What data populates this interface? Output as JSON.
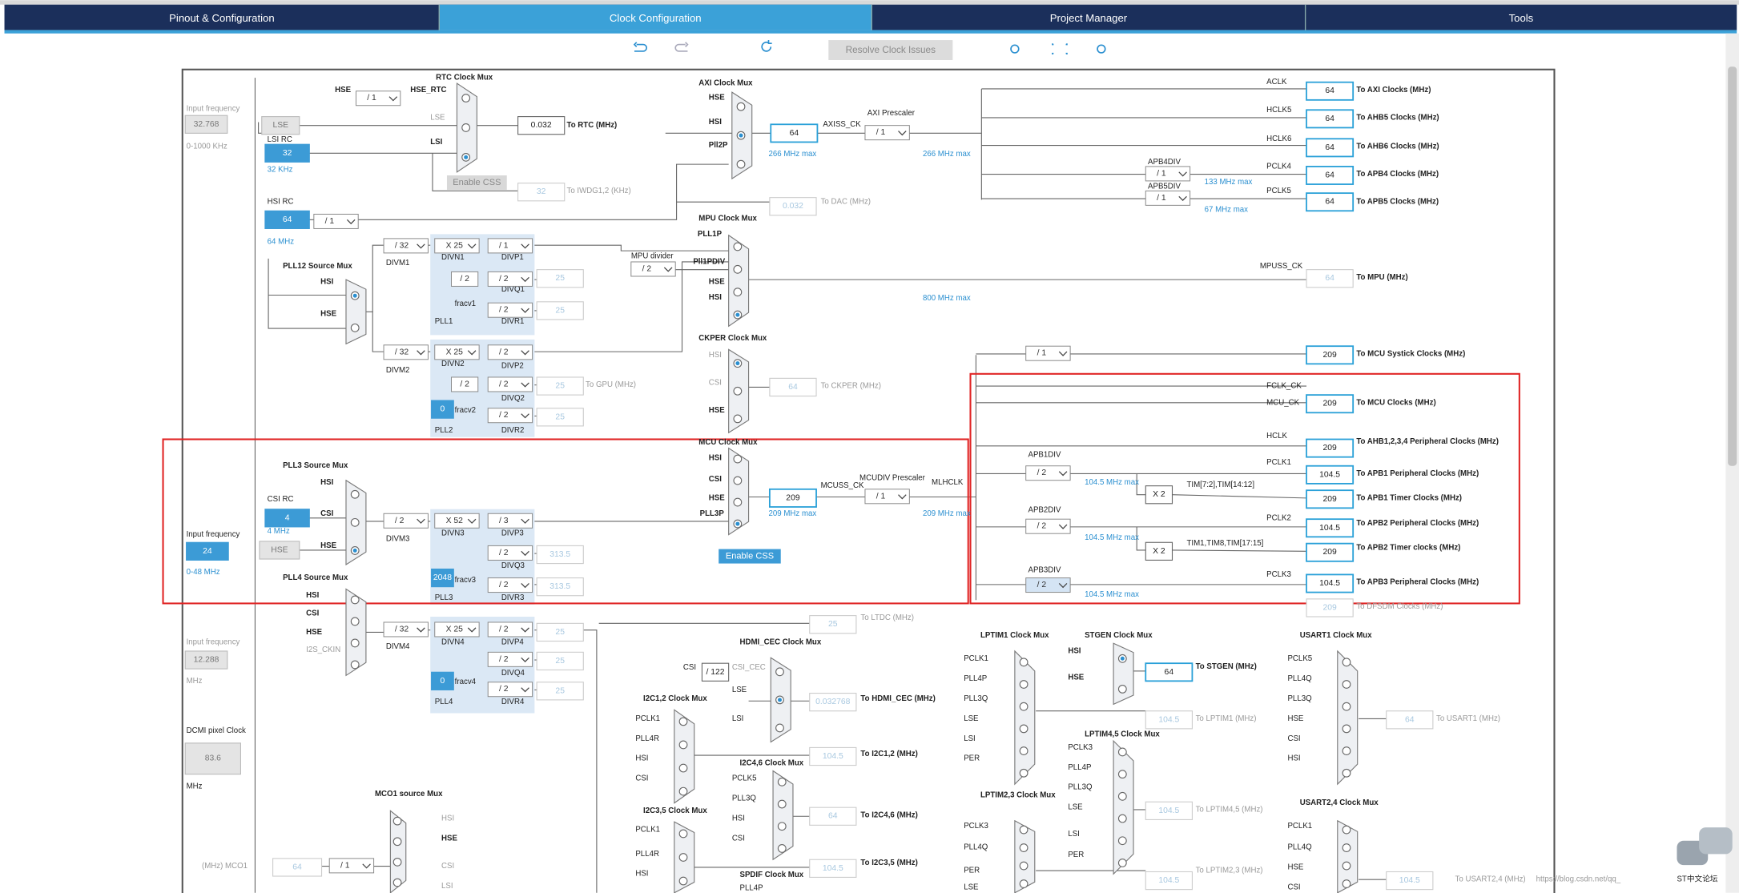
{
  "tabs": [
    "Pinout & Configuration",
    "Clock Configuration",
    "Project Manager",
    "Tools"
  ],
  "toolbar": {
    "resolve": "Resolve Clock Issues"
  },
  "labels": [
    "Input frequency",
    "0-1000 KHz",
    "LSI RC",
    "32 KHz",
    "HSI RC",
    "64 MHz",
    "RTC Clock Mux",
    "HSE",
    "HSE_RTC",
    "LSE",
    "LSI",
    "To RTC (MHz)",
    "To IWDG1,2 (KHz)",
    "To DAC (MHz)",
    "PLL12 Source Mux",
    "HSI",
    "HSE",
    "DIVM1",
    "DIVN1",
    "DIVP1",
    "DIVQ1",
    "DIVR1",
    "fracv1",
    "PLL1",
    "MPU divider",
    "DIVM2",
    "DIVN2",
    "DIVP2",
    "DIVQ2",
    "DIVR2",
    "fracv2",
    "PLL2",
    "To GPU (MHz)",
    "AXI Clock Mux",
    "HSE",
    "HSI",
    "Pll2P",
    "AXISS_CK",
    "AXI Prescaler",
    "266 MHz max",
    "266 MHz max",
    "ACLK",
    "HCLK5",
    "HCLK6",
    "PCLK4",
    "PCLK5",
    "APB4DIV",
    "APB5DIV",
    "133 MHz max",
    "67 MHz max",
    "To AXI Clocks (MHz)",
    "To AHB5 Clocks (MHz)",
    "To AHB6 Clocks (MHz)",
    "To APB4 Clocks (MHz)",
    "To APB5 Clocks (MHz)",
    "MPU Clock Mux",
    "PLL1P",
    "Pll1PDIV",
    "HSE",
    "HSI",
    "MPUSS_CK",
    "To MPU (MHz)",
    "800 MHz max",
    "CKPER Clock Mux",
    "HSI",
    "CSI",
    "HSE",
    "To CKPER (MHz)",
    "MCU Clock Mux",
    "HSI",
    "CSI",
    "HSE",
    "PLL3P",
    "MCUSS_CK",
    "MCUDIV Prescaler",
    "MLHCLK",
    "209 MHz max",
    "209 MHz max",
    "To MCU Systick Clocks (MHz)",
    "FCLK_CK",
    "MCU_CK",
    "To MCU Clocks (MHz)",
    "HCLK",
    "To AHB1,2,3,4 Peripheral Clocks (MHz)",
    "APB1DIV",
    "PCLK1",
    "To APB1 Peripheral Clocks (MHz)",
    "104.5 MHz max",
    "TIM[7:2],TIM[14:12]",
    "To APB1 Timer Clocks (MHz)",
    "APB2DIV",
    "PCLK2",
    "To APB2 Peripheral Clocks (MHz)",
    "104.5 MHz max",
    "TIM1,TIM8,TIM[17:15]",
    "To APB2 Timer clocks (MHz)",
    "APB3DIV",
    "PCLK3",
    "To APB3 Peripheral Clocks (MHz)",
    "104.5 MHz max",
    "To DFSDM Clocks (MHz)",
    "PLL3 Source Mux",
    "HSI",
    "CSI",
    "HSE",
    "CSI RC",
    "4 MHz",
    "Input frequency",
    "0-48 MHz",
    "DIVM3",
    "DIVN3",
    "DIVP3",
    "DIVQ3",
    "DIVR3",
    "fracv3",
    "PLL3",
    "PLL4 Source Mux",
    "HSI",
    "CSI",
    "HSE",
    "I2S_CKIN",
    "DIVM4",
    "DIVN4",
    "DIVP4",
    "DIVQ4",
    "DIVR4",
    "fracv4",
    "PLL4",
    "Input frequency",
    "MHz",
    "DCMI pixel Clock",
    "MHz",
    "To LTDC (MHz)",
    "MCO1 source Mux",
    "HSI",
    "HSE",
    "CSI",
    "LSI",
    "(MHz) MCO1",
    "HDMI_CEC Clock Mux",
    "CSI",
    "CSI_CEC",
    "LSE",
    "LSI",
    "To HDMI_CEC (MHz)",
    "I2C1,2 Clock Mux",
    "PCLK1",
    "PLL4R",
    "HSI",
    "CSI",
    "To I2C1,2 (MHz)",
    "I2C4,6 Clock Mux",
    "PCLK5",
    "PLL3Q",
    "HSI",
    "CSI",
    "To I2C4,6 (MHz)",
    "I2C3,5 Clock Mux",
    "PCLK1",
    "PLL4R",
    "HSI",
    "To I2C3,5 (MHz)",
    "SPDIF Clock Mux",
    "PLL4P",
    "LPTIM1 Clock Mux",
    "PCLK1",
    "PLL4P",
    "PLL3Q",
    "LSE",
    "LSI",
    "PER",
    "STGEN Clock Mux",
    "HSI",
    "HSE",
    "To STGEN (MHz)",
    "To LPTIM1 (MHz)",
    "LPTIM4,5 Clock Mux",
    "PCLK3",
    "PLL4P",
    "PLL3Q",
    "LSE",
    "LSI",
    "PER",
    "To LPTIM4,5 (MHz)",
    "LPTIM2,3 Clock Mux",
    "PCLK3",
    "PLL4Q",
    "PER",
    "LSE",
    "To LPTIM2,3 (MHz)",
    "USART1 Clock Mux",
    "PCLK5",
    "PLL4Q",
    "PLL3Q",
    "HSE",
    "CSI",
    "HSI",
    "To USART1 (MHz)",
    "USART2,4 Clock Mux",
    "PCLK1",
    "PLL4Q",
    "HSE",
    "CSI",
    "To USART2,4 (MHz)",
    "https://blog.csdn.net/qq_",
    "ST中文论坛"
  ],
  "fields": [
    "32.768",
    "LSE",
    "32",
    "64",
    "4",
    "24",
    "HSE",
    "12.288",
    "83.6",
    "64",
    "0.032",
    "32",
    "0.032",
    "64",
    "25",
    "25",
    "25",
    "25",
    "313.5",
    "313.5",
    "25",
    "25",
    "25",
    "0",
    "2048",
    "0",
    "64",
    "209",
    "64",
    "64",
    "64",
    "64",
    "64",
    "64",
    "209",
    "209",
    "209",
    "104.5",
    "209",
    "104.5",
    "209",
    "104.5",
    "209",
    "64",
    "104.5",
    "104.5",
    "104.5",
    "64",
    "104.5",
    "25",
    "0.032768",
    "104.5",
    "64",
    "104.5",
    "X 2",
    "X 2",
    "/ 122"
  ],
  "selects": [
    "/ 1",
    "/ 1",
    "/ 1",
    "/ 1",
    "/ 1",
    "/ 32",
    "X 25",
    "/ 1",
    "/ 2",
    "/ 2",
    "/ 2",
    "/ 2",
    "/ 32",
    "X 25",
    "/ 2",
    "/ 2",
    "/ 2",
    "/ 2",
    "/ 2",
    "X 52",
    "/ 3",
    "/ 2",
    "/ 2",
    "/ 32",
    "X 25",
    "/ 2",
    "/ 2",
    "/ 2",
    "/ 1",
    "/ 1",
    "/ 2",
    "/ 2",
    "/ 2",
    "/ 1"
  ],
  "buttons": [
    "Enable CSS",
    "Enable CSS"
  ]
}
